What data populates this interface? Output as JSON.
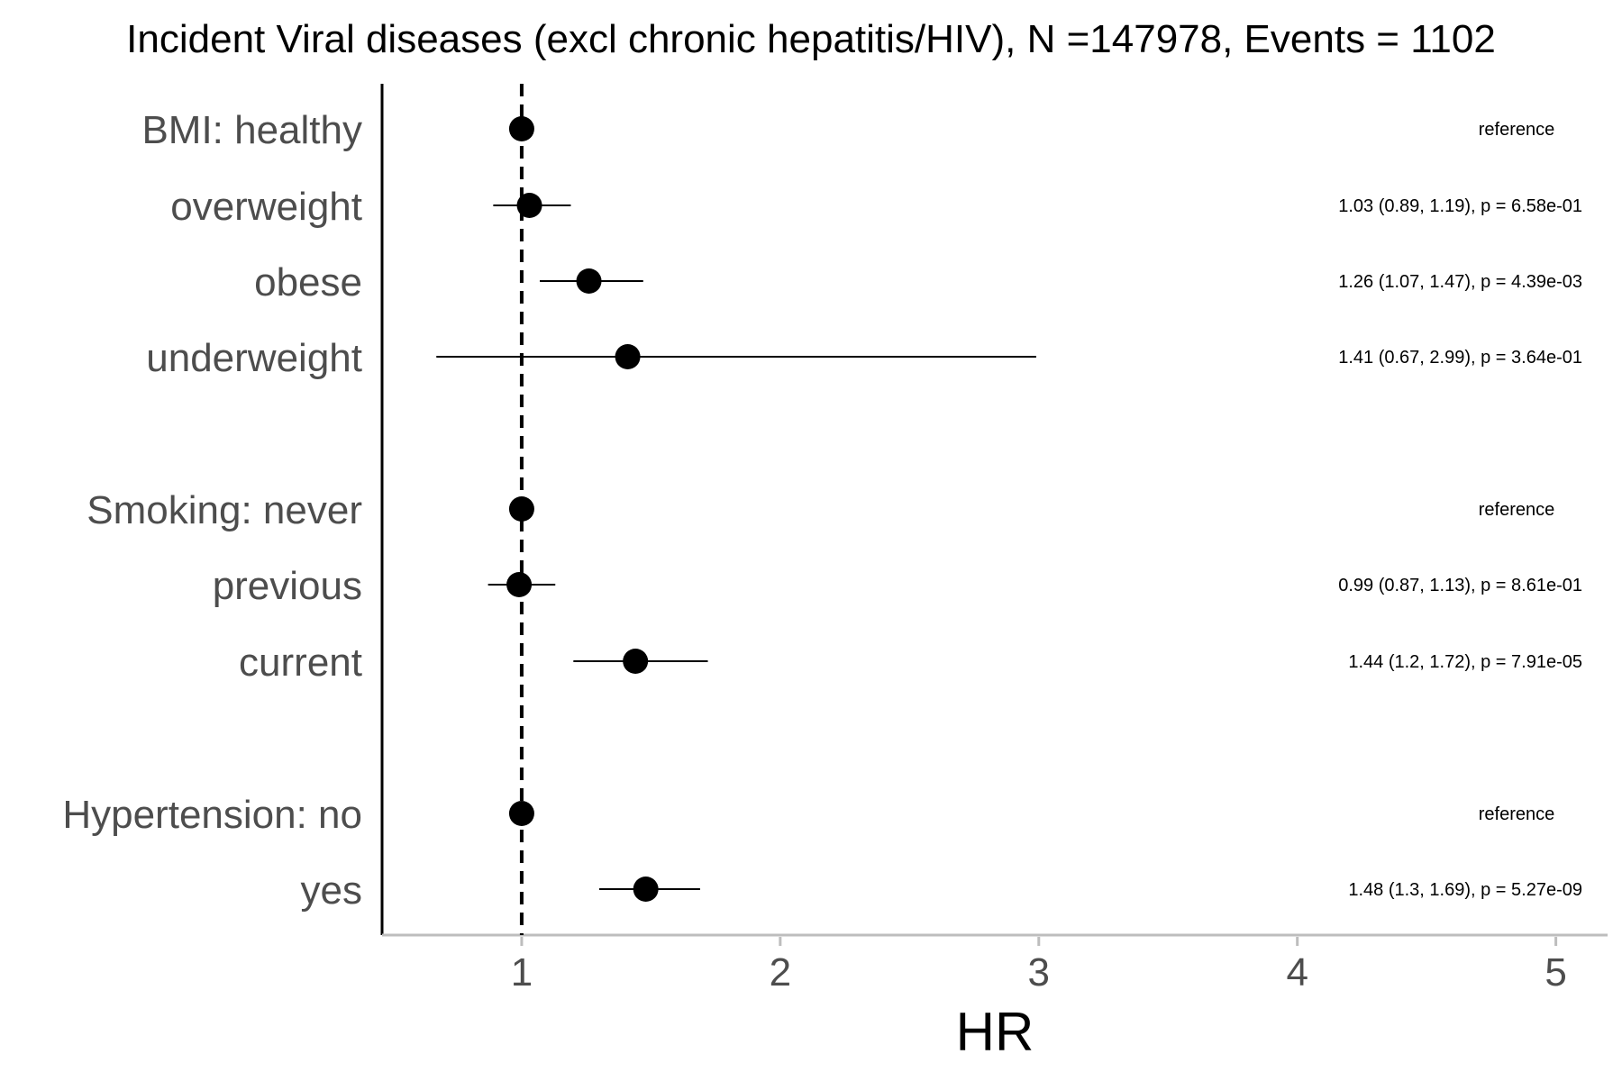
{
  "chart_data": {
    "type": "scatter",
    "subtype": "forest-plot",
    "title": "Incident Viral diseases (excl chronic hepatitis/HIV), N =147978, Events = 1102",
    "xlabel": "HR",
    "ylabel": "",
    "xlim": [
      0.46,
      5.2
    ],
    "xticks": [
      "1",
      "2",
      "3",
      "4",
      "5"
    ],
    "reference_line": 1,
    "grid": false,
    "legend": "none",
    "colors": {
      "point": "#000000",
      "axis": "#000000",
      "baseline": "#bdbdbd",
      "label": "#4d4d4d"
    },
    "rows": [
      {
        "label": "BMI: healthy",
        "hr": 1.0,
        "lower": 1.0,
        "upper": 1.0,
        "estimate_text": "reference"
      },
      {
        "label": "overweight",
        "hr": 1.03,
        "lower": 0.89,
        "upper": 1.19,
        "estimate_text": "1.03 (0.89, 1.19), p = 6.58e-01"
      },
      {
        "label": "obese",
        "hr": 1.26,
        "lower": 1.07,
        "upper": 1.47,
        "estimate_text": "1.26 (1.07, 1.47), p = 4.39e-03"
      },
      {
        "label": "underweight",
        "hr": 1.41,
        "lower": 0.67,
        "upper": 2.99,
        "estimate_text": "1.41 (0.67, 2.99), p = 3.64e-01"
      },
      {
        "label": "Smoking: never",
        "hr": 1.0,
        "lower": 1.0,
        "upper": 1.0,
        "estimate_text": "reference"
      },
      {
        "label": "previous",
        "hr": 0.99,
        "lower": 0.87,
        "upper": 1.13,
        "estimate_text": "0.99 (0.87, 1.13), p = 8.61e-01"
      },
      {
        "label": "current",
        "hr": 1.44,
        "lower": 1.2,
        "upper": 1.72,
        "estimate_text": "1.44 (1.2, 1.72), p = 7.91e-05"
      },
      {
        "label": "Hypertension: no",
        "hr": 1.0,
        "lower": 1.0,
        "upper": 1.0,
        "estimate_text": "reference"
      },
      {
        "label": "yes",
        "hr": 1.48,
        "lower": 1.3,
        "upper": 1.69,
        "estimate_text": "1.48 (1.3, 1.69), p = 5.27e-09"
      }
    ]
  }
}
